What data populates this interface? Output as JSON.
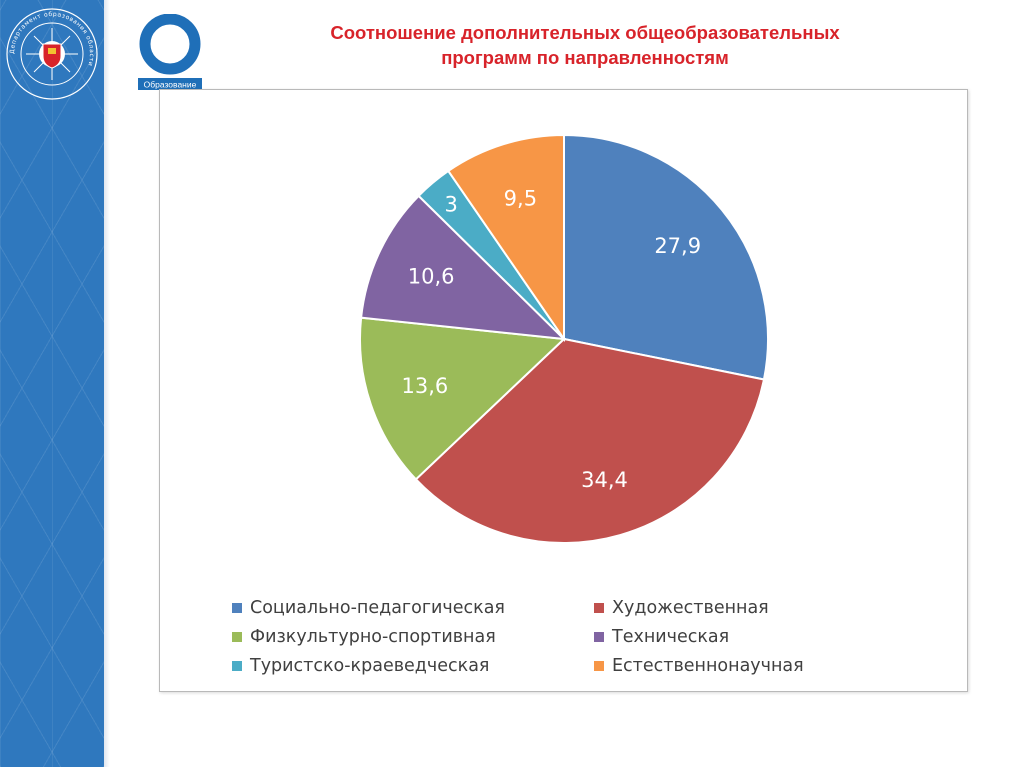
{
  "title_lines": [
    "Соотношение дополнительных общеобразовательных",
    "программ по направленностям"
  ],
  "logo": {
    "caption": "Образование",
    "color": "#1f6fb8"
  },
  "seal": {
    "text": "Департамент образования области"
  },
  "chart_data": {
    "type": "pie",
    "start_angle_deg": 0,
    "direction": "clockwise",
    "legend_position": "bottom",
    "slices": [
      {
        "label": "Социально-педагогическая",
        "value": 27.9,
        "value_label": "27,9",
        "color": "#4f81bd"
      },
      {
        "label": "Художественная",
        "value": 34.4,
        "value_label": "34,4",
        "color": "#c0504d"
      },
      {
        "label": "Физкультурно-спортивная",
        "value": 13.6,
        "value_label": "13,6",
        "color": "#9bbb59"
      },
      {
        "label": "Техническая",
        "value": 10.6,
        "value_label": "10,6",
        "color": "#8064a2"
      },
      {
        "label": "Туристско-краеведческая",
        "value": 3,
        "value_label": "3",
        "color": "#4bacc6"
      },
      {
        "label": "Естественнонаучная",
        "value": 9.5,
        "value_label": "9,5",
        "color": "#f79646"
      }
    ]
  }
}
